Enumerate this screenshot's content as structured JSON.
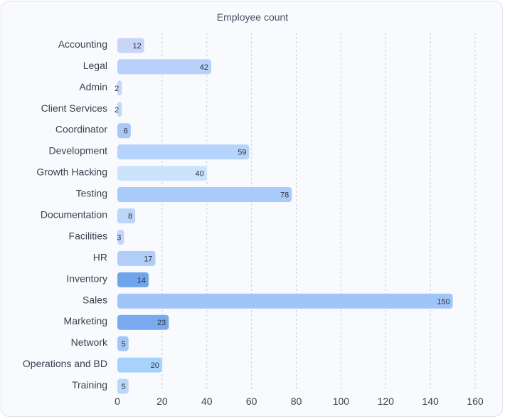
{
  "chart_data": {
    "type": "bar",
    "orientation": "horizontal",
    "title": "Employee count",
    "xlabel": "",
    "ylabel": "",
    "xlim": [
      0,
      160
    ],
    "xticks": [
      0,
      20,
      40,
      60,
      80,
      100,
      120,
      140,
      160
    ],
    "grid": true,
    "categories": [
      "Accounting",
      "Legal",
      "Admin",
      "Client Services",
      "Coordinator",
      "Development",
      "Growth Hacking",
      "Testing",
      "Documentation",
      "Facilities",
      "HR",
      "Inventory",
      "Sales",
      "Marketing",
      "Network",
      "Operations and BD",
      "Training"
    ],
    "values": [
      12,
      42,
      2,
      2,
      6,
      59,
      40,
      78,
      8,
      3,
      17,
      14,
      150,
      23,
      5,
      20,
      5
    ],
    "colors": [
      "#c7d5f7",
      "#b9d0fa",
      "#c2d8fb",
      "#c4d9fa",
      "#a9c8f5",
      "#b6d4fb",
      "#cce3fd",
      "#a9cbfa",
      "#bcd6fb",
      "#c2d6fb",
      "#b1cef8",
      "#6fa5ec",
      "#a2c5f8",
      "#79aaef",
      "#a6c6f5",
      "#a6d2fc",
      "#bcd6fb"
    ]
  }
}
